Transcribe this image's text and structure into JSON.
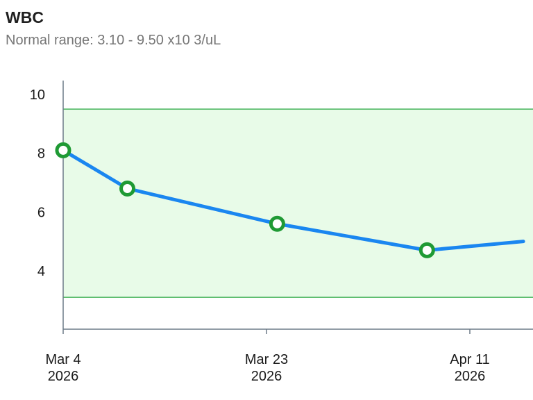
{
  "header": {
    "title": "WBC",
    "subtitle": "Normal range: 3.10 - 9.50 x10 3/uL"
  },
  "colors": {
    "line": "#1a86f0",
    "marker": "#1f9a34",
    "band_fill": "#e8fbe8",
    "band_edge": "#45b35a",
    "axis": "#6d7b89"
  },
  "chart_data": {
    "type": "line",
    "title": "WBC",
    "subtitle": "Normal range: 3.10 - 9.50 x10 3/uL",
    "normal_range": [
      3.1,
      9.5
    ],
    "xlim": [
      "2026-03-04",
      "2026-04-16"
    ],
    "ylim": [
      2.0,
      10.0
    ],
    "yticks": [
      4,
      6,
      8,
      10
    ],
    "xticks": [
      {
        "date": "2026-03-04",
        "line1": "Mar 4",
        "line2": "2026"
      },
      {
        "date": "2026-03-23",
        "line1": "Mar 23",
        "line2": "2026"
      },
      {
        "date": "2026-04-11",
        "line1": "Apr 11",
        "line2": "2026"
      }
    ],
    "series": [
      {
        "points": [
          {
            "x": "2026-03-04",
            "y": 8.1,
            "marker": true
          },
          {
            "x": "2026-03-10",
            "y": 6.8,
            "marker": true
          },
          {
            "x": "2026-03-24",
            "y": 5.6,
            "marker": true
          },
          {
            "x": "2026-04-07",
            "y": 4.7,
            "marker": true
          },
          {
            "x": "2026-04-16",
            "y": 5.0,
            "marker": false
          }
        ]
      }
    ],
    "grid": false
  }
}
